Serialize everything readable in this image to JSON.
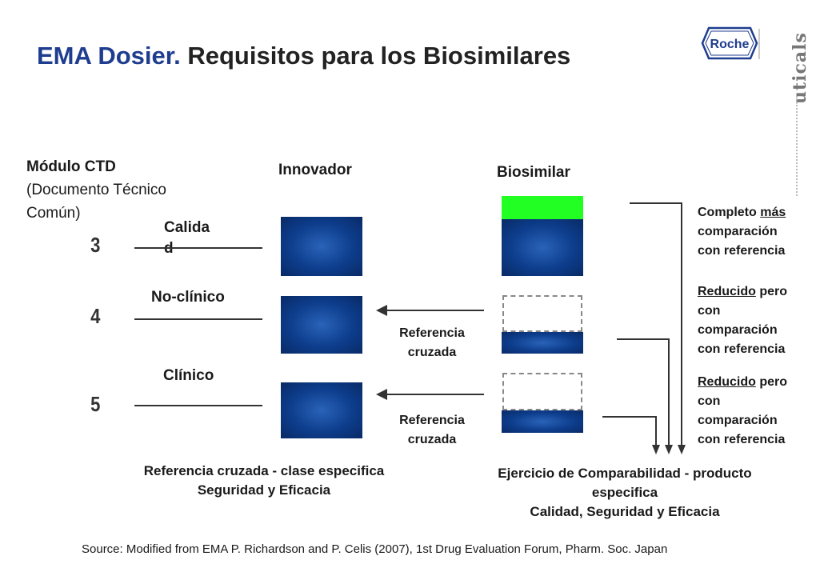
{
  "title": {
    "accent": "EMA Dosier.",
    "rest": "Requisitos para los Biosimilares"
  },
  "logo": {
    "text": "Roche",
    "side_text": "uticals"
  },
  "module": {
    "heading": "Módulo CTD",
    "sub1": "(Documento Técnico",
    "sub2": "Común)"
  },
  "columns": {
    "innovator": "Innovador",
    "biosimilar": "Biosimilar"
  },
  "rows": [
    {
      "number": "3",
      "label_line1": "Calida",
      "label_line2": "d"
    },
    {
      "number": "4",
      "label": "No-clínico"
    },
    {
      "number": "5",
      "label": "Clínico"
    }
  ],
  "cross_ref": {
    "line1": "Referencia",
    "line2": "cruzada"
  },
  "right_notes": [
    {
      "u_before": "Completo",
      "u_word": "más",
      "rest": [
        "comparación",
        "con referencia"
      ]
    },
    {
      "u_word": "Reducido",
      "after": "pero",
      "rest": [
        "con",
        "comparación",
        "con referencia"
      ]
    },
    {
      "u_word": "Reducido",
      "after": "pero",
      "rest": [
        "con",
        "comparación",
        "con referencia"
      ]
    }
  ],
  "bottom_left": {
    "line1": "Referencia cruzada - clase especifica",
    "line2": "Seguridad y Eficacia"
  },
  "bottom_right": {
    "line1": "Ejercicio de Comparabilidad - producto",
    "line2": "especifica",
    "line3": "Calidad, Seguridad y Eficacia"
  },
  "source": "Source: Modified from EMA P. Richardson and P. Celis (2007), 1st Drug Evaluation Forum, Pharm. Soc. Japan",
  "colors": {
    "accent": "#1f3d8f",
    "box_blue": "#0d3d8c",
    "green": "#22ff22"
  }
}
